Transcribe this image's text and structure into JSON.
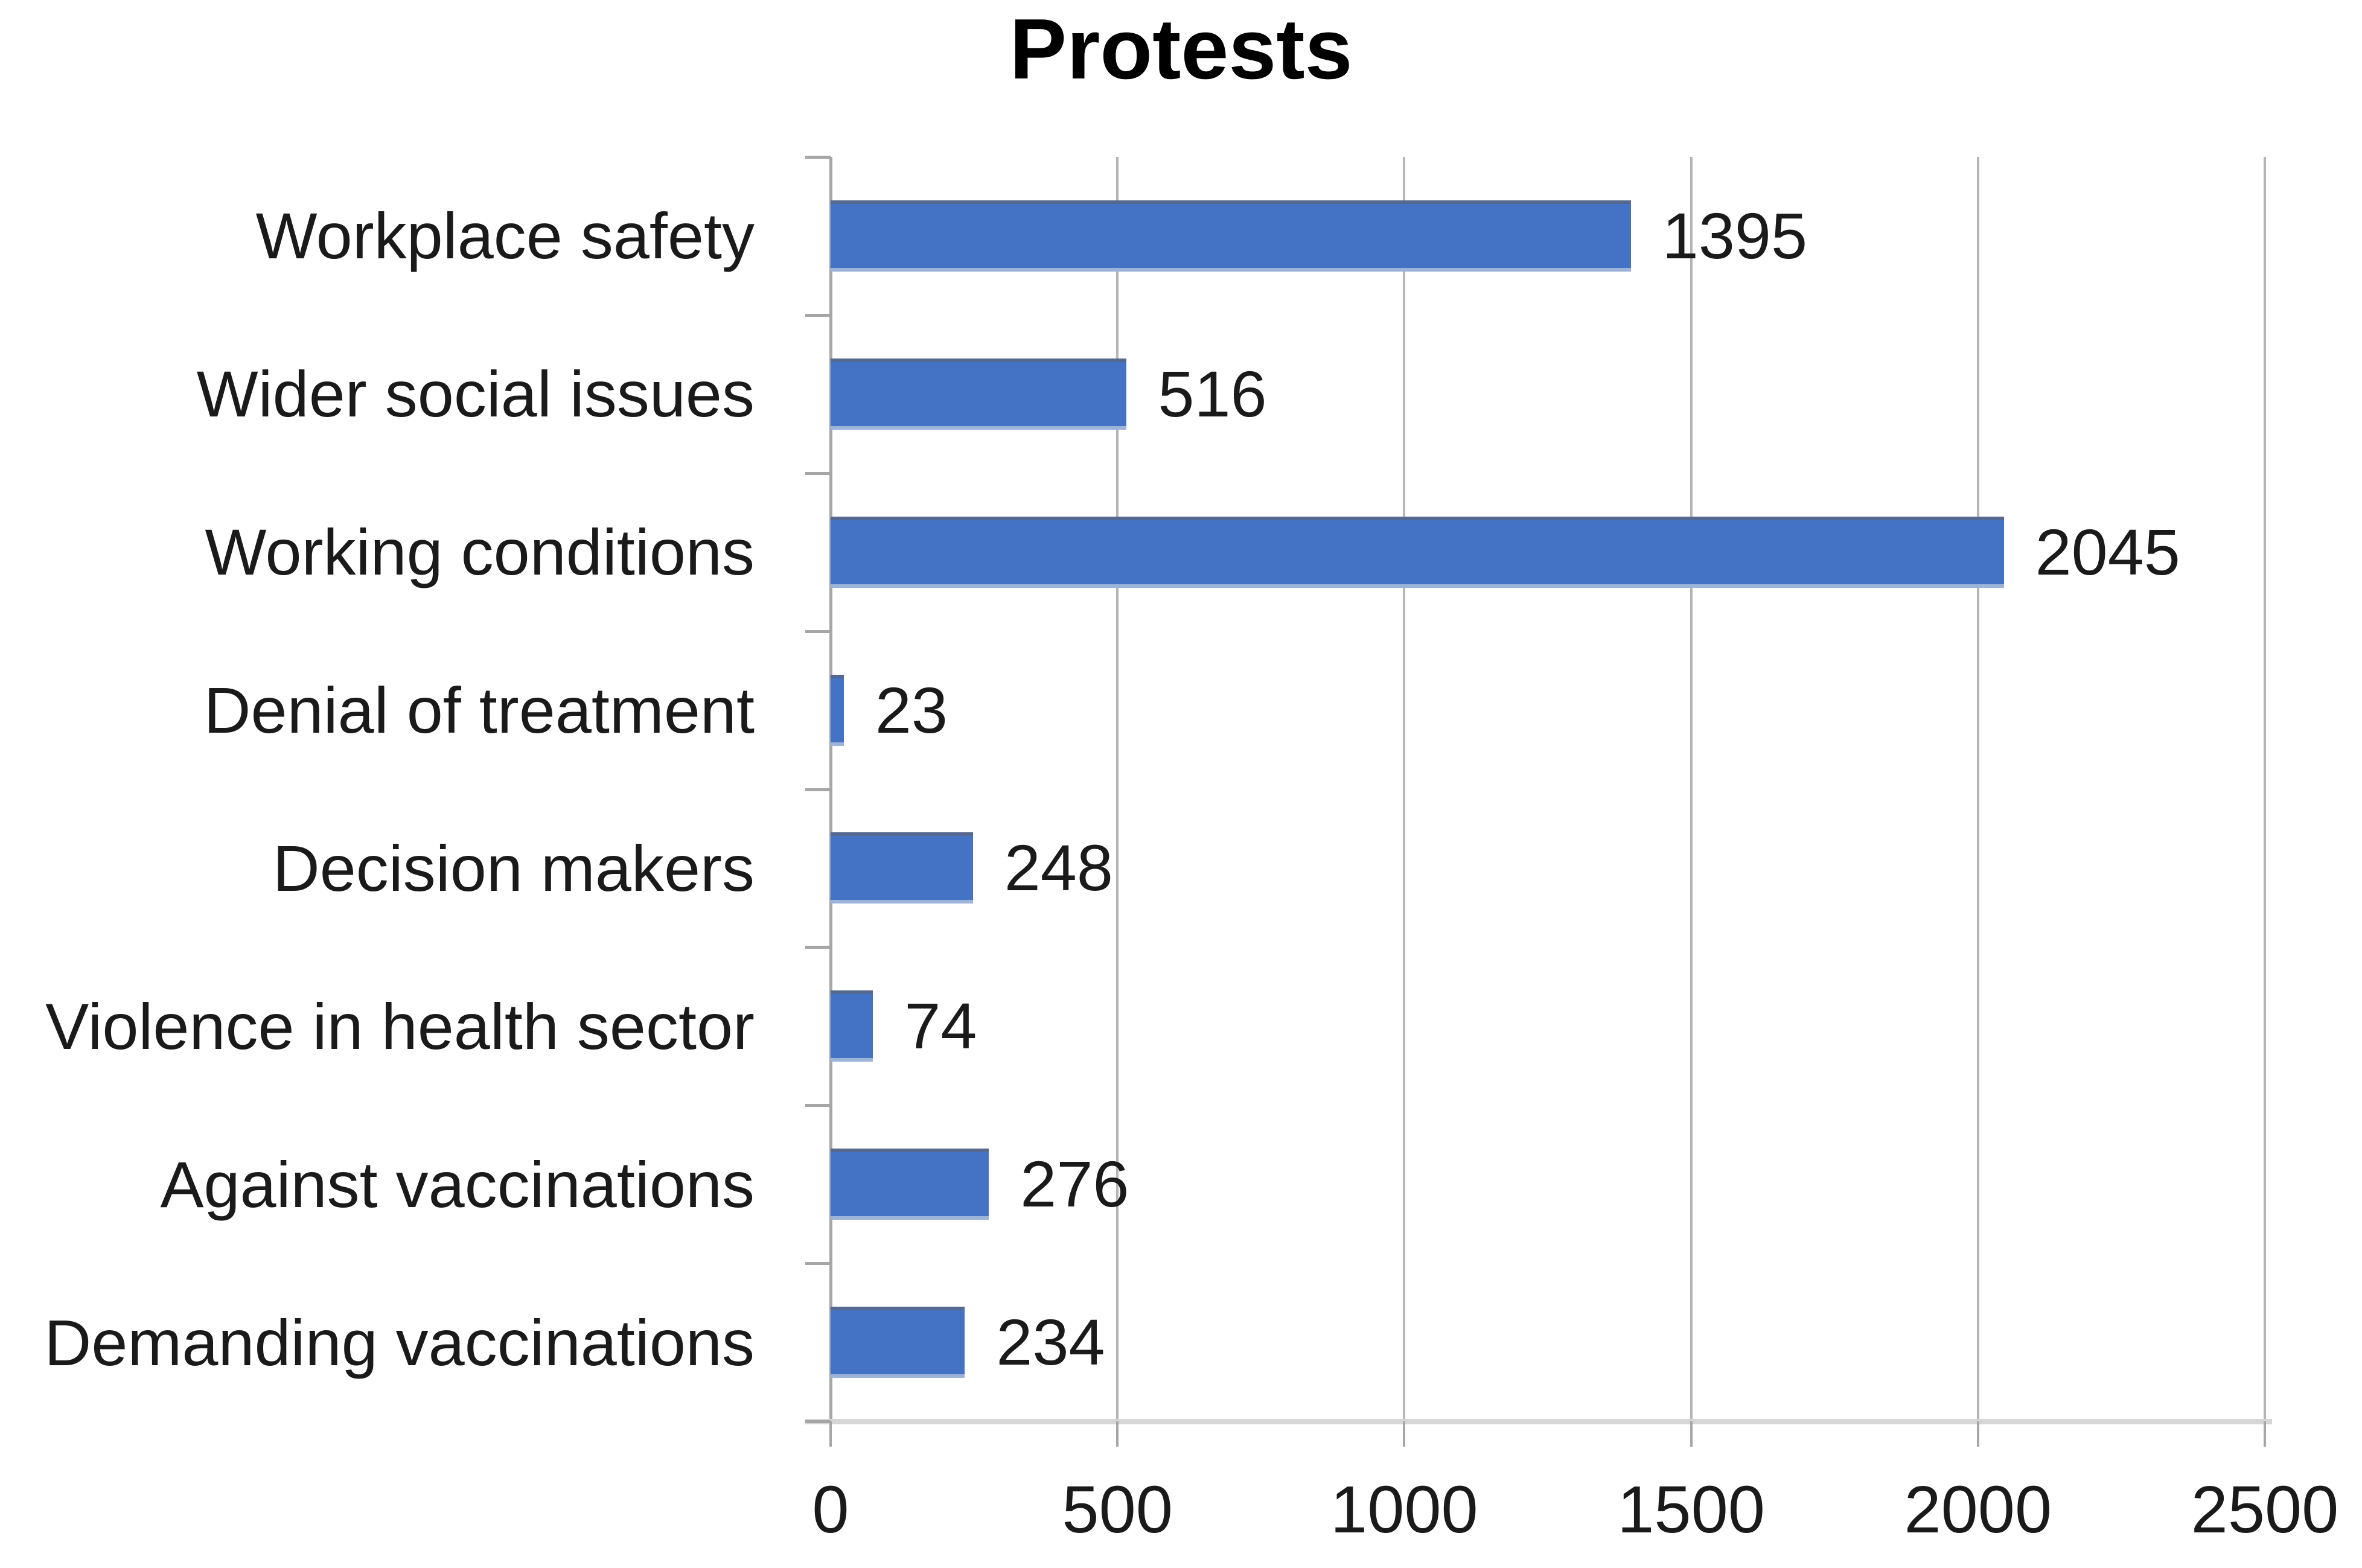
{
  "chart_data": {
    "type": "bar",
    "orientation": "horizontal",
    "title": "Protests",
    "categories": [
      "Workplace safety",
      "Wider social issues",
      "Working conditions",
      "Denial of treatment",
      "Decision makers",
      "Violence in health sector",
      "Against vaccinations",
      "Demanding vaccinations"
    ],
    "values": [
      1395,
      516,
      2045,
      23,
      248,
      74,
      276,
      234
    ],
    "data_labels": [
      "1395",
      "516",
      "2045",
      "23",
      "248",
      "74",
      "276",
      "234"
    ],
    "xlabel": "",
    "ylabel": "",
    "xlim": [
      0,
      2500
    ],
    "x_ticks": [
      "0",
      "500",
      "1000",
      "1500",
      "2000",
      "2500"
    ],
    "grid": true,
    "legend": false,
    "colors": {
      "bar_fill": "#4472C4",
      "bar_edge_top": "#55688F",
      "bar_edge_bottom": "#9CB3DA",
      "gridline": "#B5B5B5",
      "category_axis_line": "#A6A6A6",
      "tick_mark": "#A6A6A6",
      "baseline": "#D6D6D6",
      "text": "#1A1A1A",
      "title_color": "#000000"
    }
  }
}
